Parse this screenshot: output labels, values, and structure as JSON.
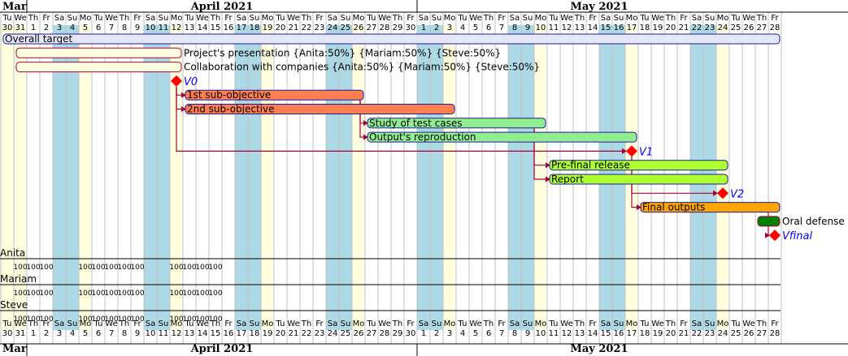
{
  "timeline": {
    "month_labels": [
      "Mar",
      "April 2021",
      "May 2021"
    ],
    "month_day_counts": [
      2,
      30,
      28
    ],
    "day_numbers": [
      "30",
      "31",
      "1",
      "2",
      "3",
      "4",
      "5",
      "6",
      "7",
      "8",
      "9",
      "10",
      "11",
      "12",
      "13",
      "14",
      "15",
      "16",
      "17",
      "18",
      "19",
      "20",
      "21",
      "22",
      "23",
      "24",
      "25",
      "26",
      "27",
      "28",
      "29",
      "30",
      "1",
      "2",
      "3",
      "4",
      "5",
      "6",
      "7",
      "8",
      "9",
      "10",
      "11",
      "12",
      "13",
      "14",
      "15",
      "16",
      "17",
      "18",
      "19",
      "20",
      "21",
      "22",
      "23",
      "24",
      "25",
      "26",
      "27",
      "28"
    ],
    "weekday_labels": [
      "Tu",
      "We",
      "Th",
      "Fr",
      "Sa",
      "Su",
      "Mo",
      "Tu",
      "We",
      "Th",
      "Fr",
      "Sa",
      "Su",
      "Mo",
      "Tu",
      "We",
      "Th",
      "Fr",
      "Sa",
      "Su",
      "Mo",
      "Tu",
      "We",
      "Th",
      "Fr",
      "Sa",
      "Su",
      "Mo",
      "Tu",
      "We",
      "Th",
      "Fr",
      "Sa",
      "Su",
      "Mo",
      "Tu",
      "We",
      "Th",
      "Fr",
      "Sa",
      "Su",
      "Mo",
      "Tu",
      "We",
      "Th",
      "Fr",
      "Sa",
      "Su",
      "Mo",
      "Tu",
      "We",
      "Th",
      "Fr",
      "Sa",
      "Su",
      "Mo",
      "Tu",
      "We",
      "Th",
      "Fr"
    ],
    "weekend_day_indexes": [
      4,
      5,
      11,
      12,
      18,
      19,
      25,
      26,
      32,
      33,
      39,
      40,
      46,
      47,
      53,
      54
    ],
    "closed_day_indexes": [
      0,
      1,
      6,
      13,
      20,
      27,
      34,
      41,
      48,
      55
    ]
  },
  "tasks": [
    {
      "id": "overall",
      "label": "Overall target",
      "start": 0,
      "end": 59,
      "color": "#e6e6fa",
      "label_inside": true
    },
    {
      "id": "presentation",
      "label": "Project's presentation {Anita:50%} {Mariam:50%} {Steve:50%}",
      "start": 1,
      "end": 13,
      "color": "#ffffe0",
      "label_inside": false
    },
    {
      "id": "collaboration",
      "label": "Collaboration with companies {Anita:50%} {Mariam:50%} {Steve:50%}",
      "start": 1,
      "end": 13,
      "color": "#ffffe0",
      "label_inside": false
    },
    {
      "id": "sub1",
      "label": "1st sub-objective",
      "start": 14,
      "end": 27,
      "color": "#ff7f50",
      "label_inside": true
    },
    {
      "id": "sub2",
      "label": "2nd sub-objective",
      "start": 14,
      "end": 34,
      "color": "#ff7f50",
      "label_inside": true
    },
    {
      "id": "study",
      "label": "Study of test cases",
      "start": 28,
      "end": 41,
      "color": "#90ee90",
      "label_inside": true
    },
    {
      "id": "reproduction",
      "label": "Output's reproduction",
      "start": 28,
      "end": 48,
      "color": "#90ee90",
      "label_inside": true
    },
    {
      "id": "prefinal",
      "label": "Pre-final release",
      "start": 42,
      "end": 55,
      "color": "#adff2f",
      "label_inside": true
    },
    {
      "id": "report",
      "label": "Report",
      "start": 42,
      "end": 55,
      "color": "#adff2f",
      "label_inside": true
    },
    {
      "id": "final",
      "label": "Final outputs",
      "start": 49,
      "end": 59,
      "color": "#ffa500",
      "label_inside": true
    },
    {
      "id": "defense",
      "label": "Oral defense",
      "start": 58,
      "end": 59,
      "color": "#008000",
      "label_inside": false
    }
  ],
  "milestones": [
    {
      "id": "v0",
      "label": "V0",
      "day": 13,
      "color": "#ff0000"
    },
    {
      "id": "v1",
      "label": "V1",
      "day": 48,
      "color": "#ff0000"
    },
    {
      "id": "v2",
      "label": "V2",
      "day": 55,
      "color": "#ff0000"
    },
    {
      "id": "vfinal",
      "label": "Vfinal",
      "day": 59,
      "color": "#ff0000"
    }
  ],
  "dependencies": [
    {
      "from": "v0",
      "to": "sub1"
    },
    {
      "from": "v0",
      "to": "sub2"
    },
    {
      "from": "sub1",
      "to": "study"
    },
    {
      "from": "sub1",
      "to": "reproduction"
    },
    {
      "from": "v0",
      "to": "v1"
    },
    {
      "from": "study",
      "to": "prefinal"
    },
    {
      "from": "study",
      "to": "report"
    },
    {
      "from": "v1",
      "to": "v2"
    },
    {
      "from": "v1",
      "to": "final"
    },
    {
      "from": "final",
      "to": "vfinal"
    }
  ],
  "resources": [
    {
      "name": "Anita",
      "loads": [
        "100",
        "100",
        "100",
        "100",
        "100",
        "100",
        "100",
        "100",
        "100",
        "100",
        "100",
        "100"
      ]
    },
    {
      "name": "Mariam",
      "loads": [
        "100",
        "100",
        "100",
        "100",
        "100",
        "100",
        "100",
        "100",
        "100",
        "100",
        "100",
        "100"
      ]
    },
    {
      "name": "Steve",
      "loads": [
        "100",
        "100",
        "100",
        "100",
        "100",
        "100",
        "100",
        "100",
        "100",
        "100",
        "100",
        "100"
      ]
    }
  ],
  "resource_load_days": [
    1,
    2,
    3,
    6,
    7,
    8,
    9,
    10,
    13,
    14,
    15,
    16
  ],
  "colors": {
    "weekend": "#add8e6",
    "closed": "#ffffe0",
    "task_border": "#181818",
    "milestone_text": "#0000ff",
    "arrow": "#a80036"
  }
}
